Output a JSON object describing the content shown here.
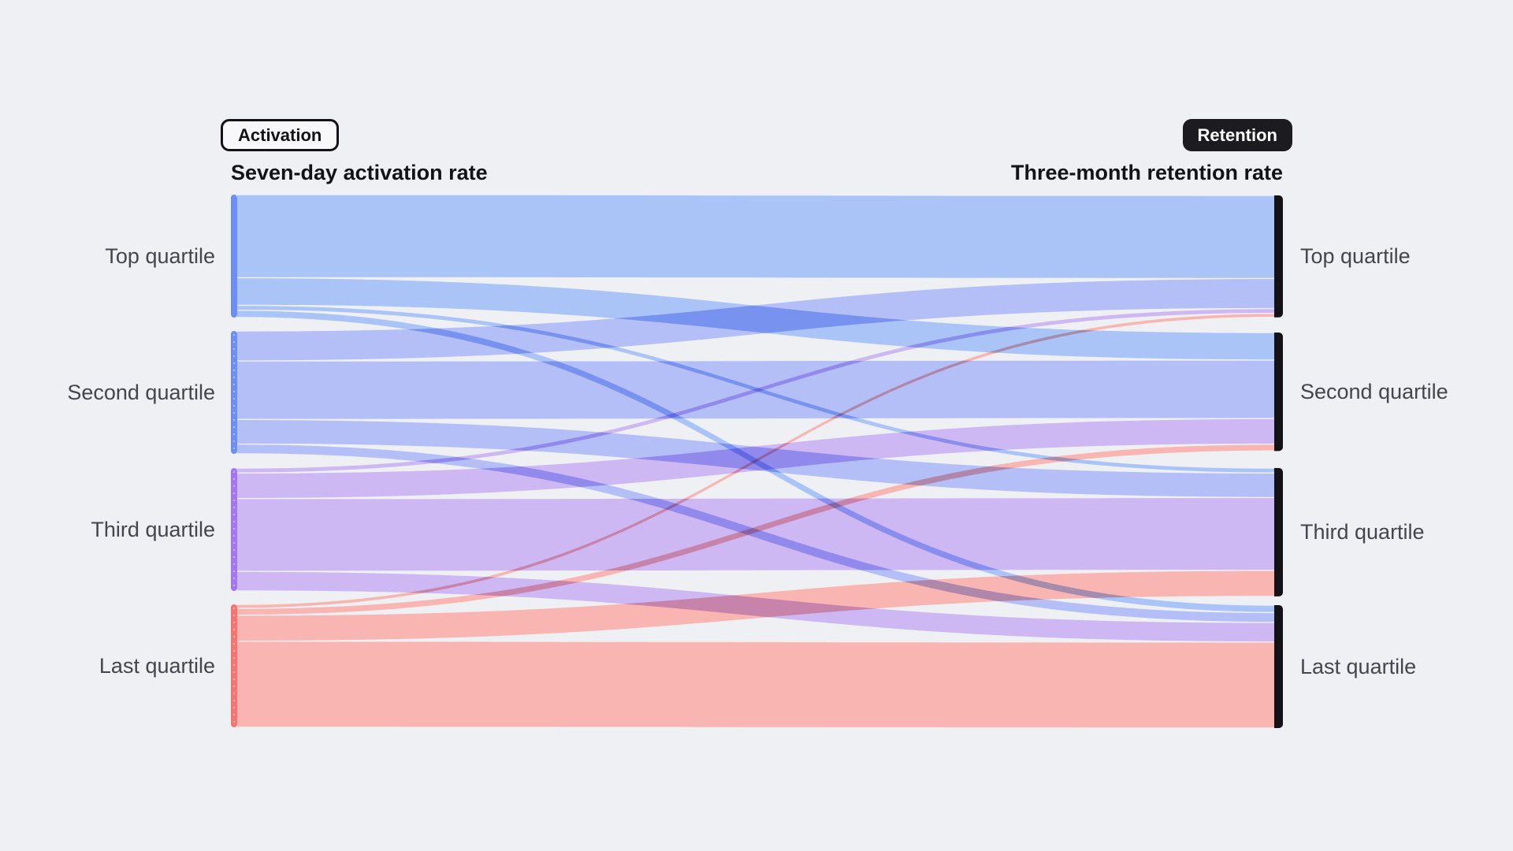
{
  "chips": {
    "activation": "Activation",
    "retention": "Retention"
  },
  "chart_data": {
    "type": "sankey",
    "left_axis_title": "Seven-day activation rate",
    "right_axis_title": "Three-month retention rate",
    "left_category_chip": "Activation",
    "right_category_chip": "Retention",
    "nodes_left": [
      "Top quartile",
      "Second quartile",
      "Third quartile",
      "Last quartile"
    ],
    "nodes_right": [
      "Top quartile",
      "Second quartile",
      "Third quartile",
      "Last quartile"
    ],
    "value_note": "relative cohort share, estimated from band heights (no numeric labels shown)",
    "links": [
      {
        "from": "Top quartile",
        "to": "Top quartile",
        "value": 16.9
      },
      {
        "from": "Top quartile",
        "to": "Second quartile",
        "value": 5.6
      },
      {
        "from": "Top quartile",
        "to": "Third quartile",
        "value": 1.0
      },
      {
        "from": "Top quartile",
        "to": "Last quartile",
        "value": 1.5
      },
      {
        "from": "Second quartile",
        "to": "Top quartile",
        "value": 6.1
      },
      {
        "from": "Second quartile",
        "to": "Second quartile",
        "value": 11.9
      },
      {
        "from": "Second quartile",
        "to": "Third quartile",
        "value": 5.0
      },
      {
        "from": "Second quartile",
        "to": "Last quartile",
        "value": 2.0
      },
      {
        "from": "Third quartile",
        "to": "Top quartile",
        "value": 1.0
      },
      {
        "from": "Third quartile",
        "to": "Second quartile",
        "value": 5.2
      },
      {
        "from": "Third quartile",
        "to": "Third quartile",
        "value": 14.8
      },
      {
        "from": "Third quartile",
        "to": "Last quartile",
        "value": 4.0
      },
      {
        "from": "Last quartile",
        "to": "Top quartile",
        "value": 0.8
      },
      {
        "from": "Last quartile",
        "to": "Second quartile",
        "value": 1.4
      },
      {
        "from": "Last quartile",
        "to": "Third quartile",
        "value": 5.3
      },
      {
        "from": "Last quartile",
        "to": "Last quartile",
        "value": 17.5
      }
    ],
    "legend_position": "none",
    "grid": false,
    "colors": {
      "background": "#eff0f4",
      "flows": [
        "#aac4f8",
        "#b4bef7",
        "#cdb8f4",
        "#f8b5b1"
      ],
      "source_bars": [
        "#6d8efa",
        "#6d8efa",
        "#a376f8",
        "#f87470"
      ],
      "target_bar": "#131317",
      "chip_dark_bg": "#1b1b20",
      "chip_text_dark": "#ffffff",
      "title_text": "#121217",
      "label_text": "#45454d"
    }
  }
}
